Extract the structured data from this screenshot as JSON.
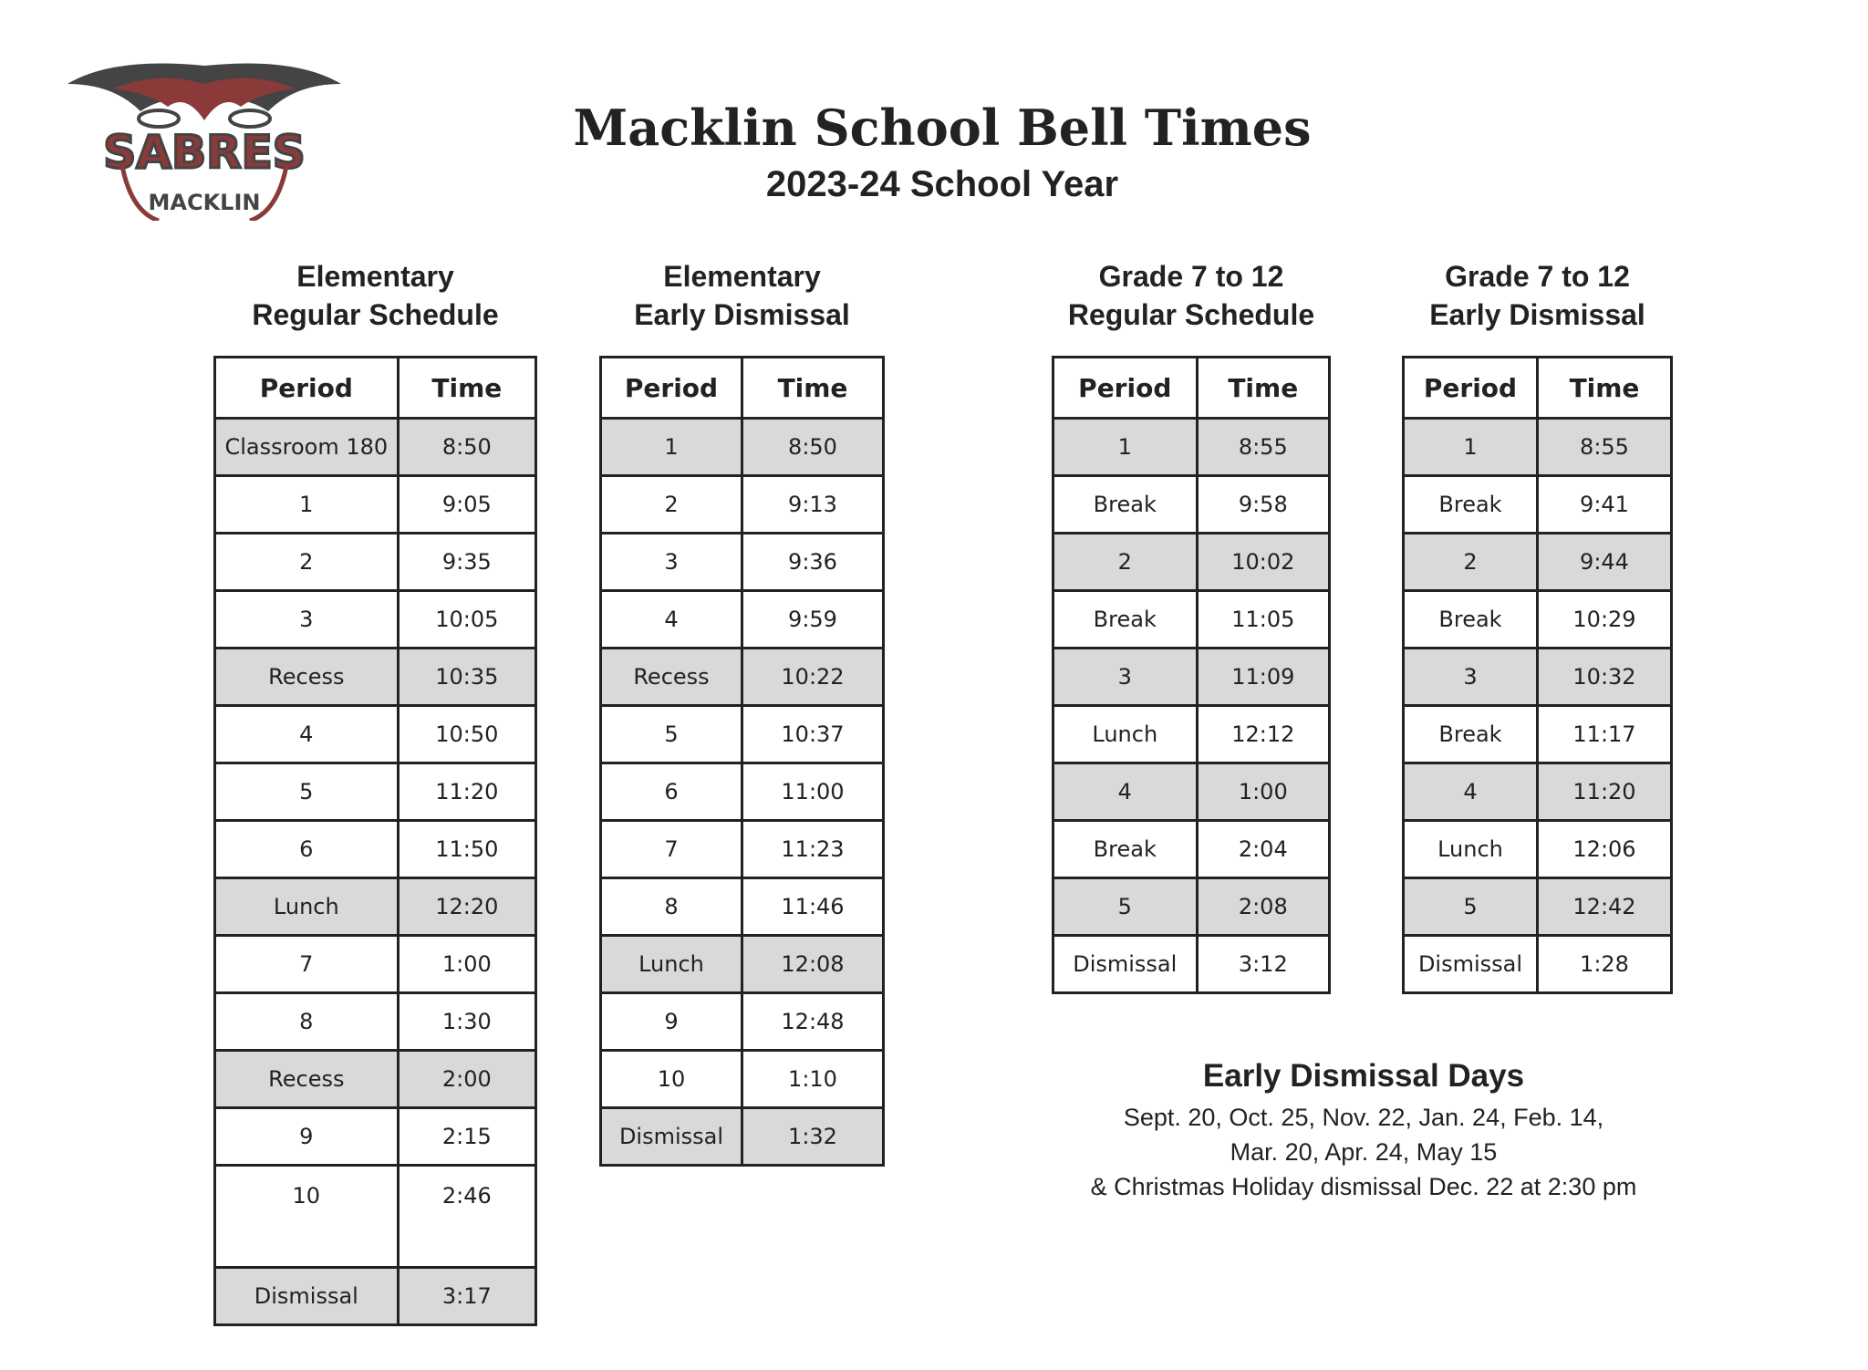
{
  "logo": {
    "text": "SABRES",
    "subtext": "MACKLIN",
    "colors": {
      "maroon": "#8b3a3a",
      "gray": "#444444"
    }
  },
  "title": "Macklin School Bell Times",
  "subtitle": "2023-24 School Year",
  "columns": {
    "period": "Period",
    "time": "Time"
  },
  "shade_color": "#d9d9d9",
  "schedules": [
    {
      "heading1": "Elementary",
      "heading2": "Regular Schedule",
      "rows": [
        [
          "Classroom 180",
          "8:50",
          true
        ],
        [
          "1",
          "9:05",
          false
        ],
        [
          "2",
          "9:35",
          false
        ],
        [
          "3",
          "10:05",
          false
        ],
        [
          "Recess",
          "10:35",
          true
        ],
        [
          "4",
          "10:50",
          false
        ],
        [
          "5",
          "11:20",
          false
        ],
        [
          "6",
          "11:50",
          false
        ],
        [
          "Lunch",
          "12:20",
          true
        ],
        [
          "7",
          "1:00",
          false
        ],
        [
          "8",
          "1:30",
          false
        ],
        [
          "Recess",
          "2:00",
          true
        ],
        [
          "9",
          "2:15",
          false
        ],
        [
          "10",
          "2:46",
          false
        ],
        [
          "Dismissal",
          "3:17",
          true
        ]
      ]
    },
    {
      "heading1": "Elementary",
      "heading2": "Early Dismissal",
      "rows": [
        [
          "1",
          "8:50",
          true
        ],
        [
          "2",
          "9:13",
          false
        ],
        [
          "3",
          "9:36",
          false
        ],
        [
          "4",
          "9:59",
          false
        ],
        [
          "Recess",
          "10:22",
          true
        ],
        [
          "5",
          "10:37",
          false
        ],
        [
          "6",
          "11:00",
          false
        ],
        [
          "7",
          "11:23",
          false
        ],
        [
          "8",
          "11:46",
          false
        ],
        [
          "Lunch",
          "12:08",
          true
        ],
        [
          "9",
          "12:48",
          false
        ],
        [
          "10",
          "1:10",
          false
        ],
        [
          "Dismissal",
          "1:32",
          true
        ]
      ]
    },
    {
      "heading1": "Grade 7 to 12",
      "heading2": "Regular Schedule",
      "rows": [
        [
          "1",
          "8:55",
          true
        ],
        [
          "Break",
          "9:58",
          false
        ],
        [
          "2",
          "10:02",
          true
        ],
        [
          "Break",
          "11:05",
          false
        ],
        [
          "3",
          "11:09",
          true
        ],
        [
          "Lunch",
          "12:12",
          false
        ],
        [
          "4",
          "1:00",
          true
        ],
        [
          "Break",
          "2:04",
          false
        ],
        [
          "5",
          "2:08",
          true
        ],
        [
          "Dismissal",
          "3:12",
          false
        ]
      ]
    },
    {
      "heading1": "Grade 7 to 12",
      "heading2": "Early Dismissal",
      "rows": [
        [
          "1",
          "8:55",
          true
        ],
        [
          "Break",
          "9:41",
          false
        ],
        [
          "2",
          "9:44",
          true
        ],
        [
          "Break",
          "10:29",
          false
        ],
        [
          "3",
          "10:32",
          true
        ],
        [
          "Break",
          "11:17",
          false
        ],
        [
          "4",
          "11:20",
          true
        ],
        [
          "Lunch",
          "12:06",
          false
        ],
        [
          "5",
          "12:42",
          true
        ],
        [
          "Dismissal",
          "1:28",
          false
        ]
      ]
    }
  ],
  "early_dismissal": {
    "title": "Early Dismissal Days",
    "lines": [
      "Sept. 20, Oct. 25, Nov. 22, Jan. 24, Feb. 14,",
      "Mar. 20, Apr. 24, May 15",
      "& Christmas Holiday dismissal Dec. 22 at 2:30 pm"
    ]
  }
}
